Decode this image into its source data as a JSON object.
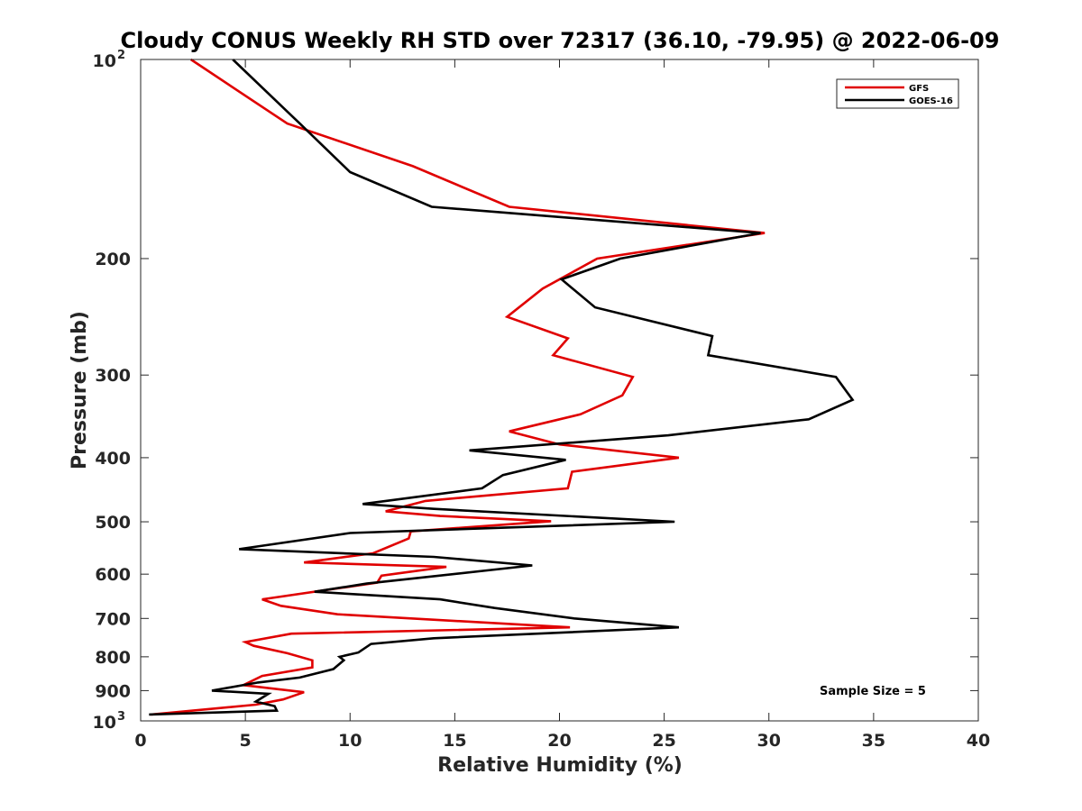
{
  "chart_data": {
    "type": "line",
    "title": "Cloudy CONUS Weekly RH STD over 72317 (36.10, -79.95) @ 2022-06-09",
    "xlabel": "Relative Humidity (%)",
    "ylabel": "Pressure (mb)",
    "xlim": [
      0,
      40
    ],
    "ylim": [
      100,
      1000
    ],
    "y_scale": "log",
    "y_reversed": true,
    "x_ticks": [
      "0",
      "5",
      "10",
      "15",
      "20",
      "25",
      "30",
      "35",
      "40"
    ],
    "y_ticks": [
      {
        "value": 100,
        "base": "10",
        "exp": "2"
      },
      {
        "value": 200,
        "label": "200"
      },
      {
        "value": 300,
        "label": "300"
      },
      {
        "value": 400,
        "label": "400"
      },
      {
        "value": 500,
        "label": "500"
      },
      {
        "value": 600,
        "label": "600"
      },
      {
        "value": 700,
        "label": "700"
      },
      {
        "value": 800,
        "label": "800"
      },
      {
        "value": 900,
        "label": "900"
      },
      {
        "value": 1000,
        "base": "10",
        "exp": "3"
      }
    ],
    "legend_position": "top-right",
    "annotation": "Sample Size = 5",
    "series": [
      {
        "name": "GFS",
        "color": "#e00000",
        "points": [
          [
            2.4,
            100
          ],
          [
            7.0,
            125
          ],
          [
            13.0,
            145
          ],
          [
            17.6,
            167
          ],
          [
            29.8,
            183
          ],
          [
            21.8,
            200
          ],
          [
            19.2,
            222
          ],
          [
            17.5,
            245
          ],
          [
            20.4,
            264
          ],
          [
            19.7,
            280
          ],
          [
            23.5,
            302
          ],
          [
            23.0,
            322
          ],
          [
            21.0,
            344
          ],
          [
            17.6,
            365
          ],
          [
            20.0,
            382
          ],
          [
            25.7,
            400
          ],
          [
            20.6,
            420
          ],
          [
            20.4,
            445
          ],
          [
            13.6,
            465
          ],
          [
            11.7,
            482
          ],
          [
            14.3,
            490
          ],
          [
            19.6,
            499
          ],
          [
            12.9,
            517
          ],
          [
            12.8,
            530
          ],
          [
            11.1,
            558
          ],
          [
            7.8,
            576
          ],
          [
            14.6,
            585
          ],
          [
            11.5,
            603
          ],
          [
            11.3,
            618
          ],
          [
            5.8,
            655
          ],
          [
            6.7,
            670
          ],
          [
            9.4,
            690
          ],
          [
            20.5,
            722
          ],
          [
            7.2,
            738
          ],
          [
            5.0,
            760
          ],
          [
            5.4,
            770
          ],
          [
            7.0,
            790
          ],
          [
            8.2,
            810
          ],
          [
            8.2,
            830
          ],
          [
            5.8,
            855
          ],
          [
            4.9,
            883
          ],
          [
            7.8,
            905
          ],
          [
            6.8,
            928
          ],
          [
            5.5,
            945
          ],
          [
            0.5,
            978
          ]
        ]
      },
      {
        "name": "GOES-16",
        "color": "#000000",
        "points": [
          [
            4.4,
            100
          ],
          [
            7.6,
            125
          ],
          [
            10.0,
            148
          ],
          [
            13.9,
            167
          ],
          [
            29.6,
            183
          ],
          [
            22.9,
            200
          ],
          [
            20.1,
            215
          ],
          [
            21.7,
            237
          ],
          [
            27.3,
            262
          ],
          [
            27.1,
            280
          ],
          [
            33.2,
            302
          ],
          [
            34.0,
            327
          ],
          [
            31.9,
            350
          ],
          [
            25.2,
            370
          ],
          [
            15.7,
            390
          ],
          [
            20.3,
            403
          ],
          [
            17.3,
            425
          ],
          [
            16.3,
            445
          ],
          [
            10.6,
            470
          ],
          [
            14.0,
            478
          ],
          [
            25.5,
            500
          ],
          [
            10.0,
            520
          ],
          [
            4.7,
            550
          ],
          [
            14.0,
            565
          ],
          [
            18.7,
            582
          ],
          [
            10.8,
            620
          ],
          [
            8.3,
            638
          ],
          [
            14.3,
            655
          ],
          [
            16.9,
            675
          ],
          [
            20.7,
            700
          ],
          [
            25.7,
            722
          ],
          [
            14.0,
            750
          ],
          [
            11.0,
            765
          ],
          [
            10.4,
            788
          ],
          [
            9.5,
            800
          ],
          [
            9.7,
            810
          ],
          [
            9.2,
            835
          ],
          [
            7.6,
            860
          ],
          [
            5.6,
            875
          ],
          [
            3.4,
            900
          ],
          [
            6.1,
            910
          ],
          [
            5.5,
            935
          ],
          [
            6.4,
            950
          ],
          [
            6.5,
            965
          ],
          [
            0.4,
            978
          ]
        ]
      }
    ]
  }
}
